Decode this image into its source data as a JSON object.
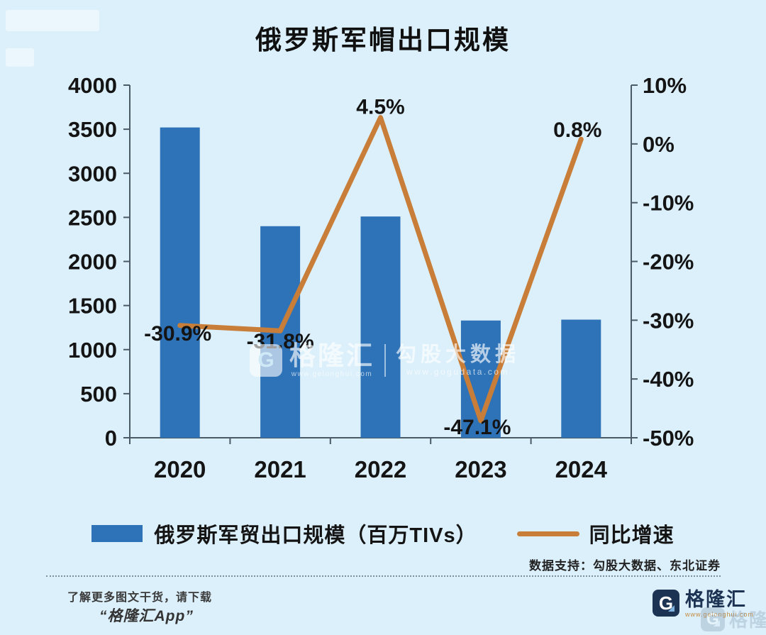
{
  "colors": {
    "background": "#dcf0fb",
    "bar": "#2e73b8",
    "line": "#c87e38",
    "axis": "#4b5b66",
    "text": "#141414",
    "brand_navy": "#1d3354",
    "brand_url_orange": "#c58a3c"
  },
  "icons": {
    "logo_letter": "G"
  },
  "chart_data": {
    "type": "bar",
    "title": "俄罗斯军帽出口规模",
    "categories": [
      "2020",
      "2021",
      "2022",
      "2023",
      "2024"
    ],
    "series": [
      {
        "name": "俄罗斯军贸出口规模（百万TIVs）",
        "type": "bar",
        "axis": "left",
        "values": [
          3520,
          2400,
          2510,
          1330,
          1340
        ]
      },
      {
        "name": "同比增速",
        "type": "line",
        "axis": "right",
        "values": [
          -30.9,
          -31.8,
          4.5,
          -47.1,
          0.8
        ],
        "labels": [
          "-30.9%",
          "-31.8%",
          "4.5%",
          "-47.1%",
          "0.8%"
        ]
      }
    ],
    "left_axis": {
      "ticks": [
        "4000",
        "3500",
        "3000",
        "2500",
        "2000",
        "1500",
        "1000",
        "500",
        "0"
      ],
      "min": 0,
      "max": 4000
    },
    "right_axis": {
      "ticks": [
        "10%",
        "0%",
        "-10%",
        "-20%",
        "-30%",
        "-40%",
        "-50%"
      ],
      "min": -50,
      "max": 10
    },
    "grid": false,
    "legend_position": "bottom"
  },
  "watermark_center": {
    "brand": "格隆汇",
    "brand_url": "www.gelonghui.com",
    "dataset": "勾股大数据",
    "dataset_url": "www.gogudata.com"
  },
  "footer": {
    "data_support": "数据支持：勾股大数据、东北证券",
    "promo_line1": "了解更多图文干货，请下载",
    "promo_line2": "“格隆汇App”",
    "brand": "格隆汇",
    "brand_url": "www.gelonghui.com"
  }
}
